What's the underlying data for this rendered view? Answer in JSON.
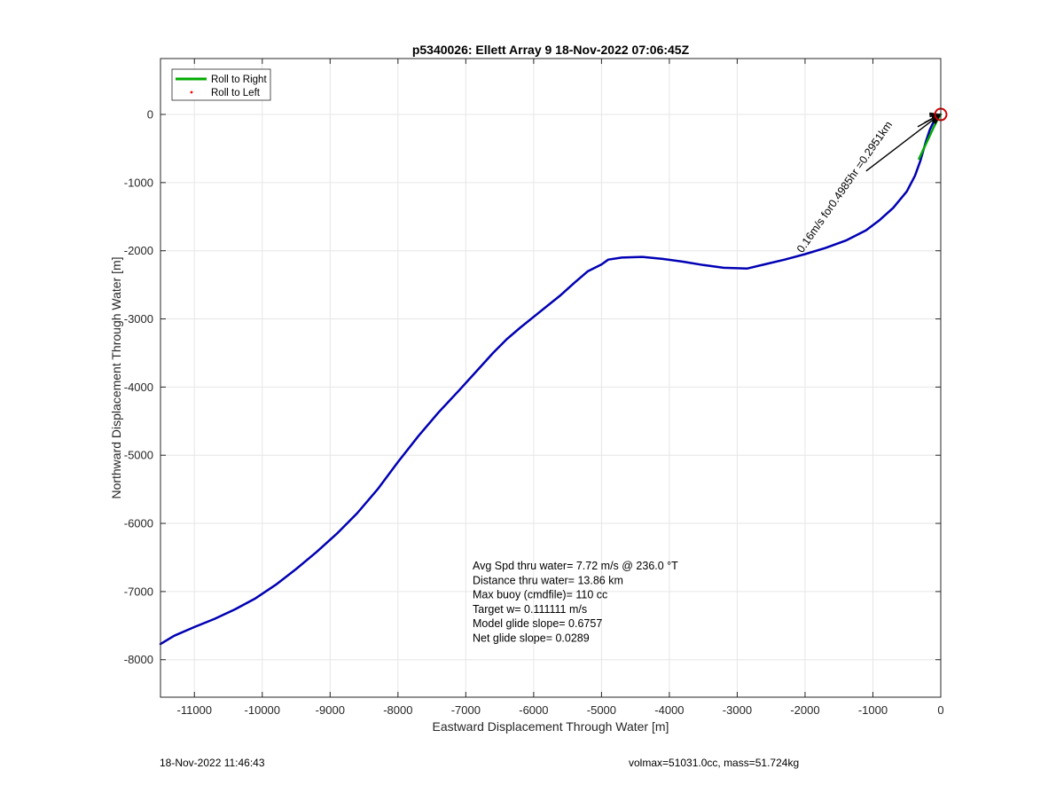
{
  "chart_data": {
    "type": "line",
    "title": "p5340026: Ellett Array 9 18-Nov-2022 07:06:45Z",
    "xlabel": "Eastward Displacement Through Water [m]",
    "ylabel": "Northward Displacement Through Water [m]",
    "xlim": [
      -11500,
      0
    ],
    "ylim": [
      -8550,
      820
    ],
    "xticks": [
      -11000,
      -10000,
      -9000,
      -8000,
      -7000,
      -6000,
      -5000,
      -4000,
      -3000,
      -2000,
      -1000,
      0
    ],
    "yticks": [
      0,
      -1000,
      -2000,
      -3000,
      -4000,
      -5000,
      -6000,
      -7000,
      -8000
    ],
    "grid": true,
    "legend": {
      "placement": "top-left",
      "entries": [
        {
          "label": "Roll to Right",
          "color": "#00aa00",
          "style": "line"
        },
        {
          "label": "Roll to Left",
          "color": "#ff0000",
          "style": "dot"
        }
      ]
    },
    "series": [
      {
        "color": "#0000b4",
        "x": [
          -11500,
          -11300,
          -11000,
          -10700,
          -10400,
          -10100,
          -9800,
          -9500,
          -9200,
          -8900,
          -8600,
          -8300,
          -8000,
          -7700,
          -7400,
          -7100,
          -6800,
          -6600,
          -6400,
          -6200,
          -6000,
          -5800,
          -5600,
          -5400,
          -5200,
          -5000,
          -4900,
          -4700,
          -4400,
          -4100,
          -3800,
          -3500,
          -3200,
          -2850,
          -2600,
          -2300,
          -2000,
          -1700,
          -1400,
          -1100,
          -900,
          -700,
          -500,
          -380,
          -300,
          -220,
          -160,
          -100,
          -50,
          0
        ],
        "y": [
          -7770,
          -7650,
          -7520,
          -7400,
          -7260,
          -7100,
          -6900,
          -6670,
          -6420,
          -6150,
          -5850,
          -5500,
          -5100,
          -4720,
          -4370,
          -4050,
          -3720,
          -3500,
          -3300,
          -3130,
          -2970,
          -2810,
          -2650,
          -2470,
          -2300,
          -2200,
          -2130,
          -2100,
          -2090,
          -2120,
          -2160,
          -2210,
          -2250,
          -2260,
          -2200,
          -2130,
          -2050,
          -1960,
          -1850,
          -1700,
          -1550,
          -1370,
          -1130,
          -900,
          -680,
          -400,
          -220,
          -100,
          -30,
          0
        ]
      },
      {
        "color": "#00aa00",
        "x": [
          -320,
          -240,
          -170,
          -110,
          -60,
          -20,
          0
        ],
        "y": [
          -650,
          -480,
          -330,
          -200,
          -100,
          -30,
          0
        ]
      }
    ],
    "markers": [
      {
        "type": "circle",
        "color": "#cc0000",
        "x": 0,
        "y": 0
      }
    ],
    "current_arrow": {
      "label": "0.16m/s for0.4985hr =0.2951km",
      "x": [
        -2040,
        -1330,
        -1100,
        -340,
        -240,
        -130,
        -100,
        -10
      ],
      "y": [
        -2040,
        -1030,
        -830,
        -180,
        -120,
        -45,
        -30,
        0
      ]
    },
    "annotations": [
      "Avg Spd thru water=  7.72 m/s @ 236.0 °T",
      "Distance thru water= 13.86 km",
      "Max buoy (cmdfile)= 110 cc",
      "Target w= 0.111111 m/s",
      "Model glide slope= 0.6757",
      "Net glide slope= 0.0289"
    ]
  },
  "footer": {
    "left": "18-Nov-2022 11:46:43",
    "right": "volmax=51031.0cc, mass=51.724kg"
  }
}
